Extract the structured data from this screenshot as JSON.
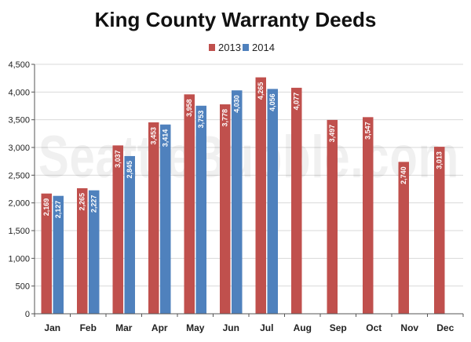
{
  "watermark": "SeattleBubble.com",
  "colors": {
    "series_2013": "#c0504d",
    "series_2014": "#4f81bd",
    "grid": "#d9d9d9",
    "axis": "#555555",
    "background": "#ffffff"
  },
  "chart_data": {
    "type": "bar",
    "title": "King County Warranty Deeds",
    "xlabel": "",
    "ylabel": "",
    "ylim": [
      0,
      4500
    ],
    "yticks": [
      0,
      500,
      1000,
      1500,
      2000,
      2500,
      3000,
      3500,
      4000,
      4500
    ],
    "ytick_labels": [
      "0",
      "500",
      "1,000",
      "1,500",
      "2,000",
      "2,500",
      "3,000",
      "3,500",
      "4,000",
      "4,500"
    ],
    "grid": true,
    "legend_position": "top-center",
    "categories": [
      "Jan",
      "Feb",
      "Mar",
      "Apr",
      "May",
      "Jun",
      "Jul",
      "Aug",
      "Sep",
      "Oct",
      "Nov",
      "Dec"
    ],
    "series": [
      {
        "name": "2013",
        "color": "#c0504d",
        "values": [
          2169,
          2265,
          3037,
          3453,
          3958,
          3778,
          4265,
          4077,
          3497,
          3547,
          2740,
          3013
        ],
        "labels": [
          "2,169",
          "2,265",
          "3,037",
          "3,453",
          "3,958",
          "3,778",
          "4,265",
          "4,077",
          "3,497",
          "3,547",
          "2,740",
          "3,013"
        ]
      },
      {
        "name": "2014",
        "color": "#4f81bd",
        "values": [
          2127,
          2227,
          2845,
          3414,
          3753,
          4030,
          4056,
          null,
          null,
          null,
          null,
          null
        ],
        "labels": [
          "2,127",
          "2,227",
          "2,845",
          "3,414",
          "3,753",
          "4,030",
          "4,056",
          null,
          null,
          null,
          null,
          null
        ]
      }
    ]
  }
}
